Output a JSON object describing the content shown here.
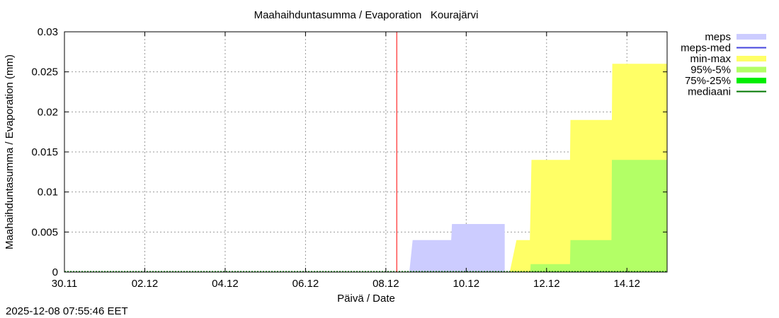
{
  "timestamp": "2025-12-08 07:55:46 EET",
  "chart_data": {
    "type": "area",
    "title": "Maahaihduntasumma / Evaporation   Kourajärvi",
    "xlabel": "Päivä / Date",
    "ylabel": "Maahaihduntasumma / Evaporation (mm)",
    "xlim": [
      "2025-11-30 00:00",
      "2025-12-15 00:00"
    ],
    "ylim": [
      0,
      0.03
    ],
    "grid": true,
    "legend_position": "outside-right",
    "xticks": [
      {
        "label": "30.11",
        "at": "2025-11-30 00:00"
      },
      {
        "label": "02.12",
        "at": "2025-12-02 00:00"
      },
      {
        "label": "04.12",
        "at": "2025-12-04 00:00"
      },
      {
        "label": "06.12",
        "at": "2025-12-06 00:00"
      },
      {
        "label": "08.12",
        "at": "2025-12-08 00:00"
      },
      {
        "label": "10.12",
        "at": "2025-12-10 00:00"
      },
      {
        "label": "12.12",
        "at": "2025-12-12 00:00"
      },
      {
        "label": "14.12",
        "at": "2025-12-14 00:00"
      }
    ],
    "yticks": [
      {
        "label": "0",
        "v": 0
      },
      {
        "label": "0.005",
        "v": 0.005
      },
      {
        "label": "0.01",
        "v": 0.01
      },
      {
        "label": "0.015",
        "v": 0.015
      },
      {
        "label": "0.02",
        "v": 0.02
      },
      {
        "label": "0.025",
        "v": 0.025
      },
      {
        "label": "0.03",
        "v": 0.03
      }
    ],
    "now_line": {
      "x": "2025-12-08 06:30",
      "color": "#ff0000"
    },
    "series": [
      {
        "name": "meps",
        "kind": "band",
        "color": "#ccccff",
        "points": [
          [
            "2025-12-08 14:00",
            0
          ],
          [
            "2025-12-08 16:00",
            0.004
          ],
          [
            "2025-12-09 15:00",
            0.004
          ],
          [
            "2025-12-09 15:30",
            0.006
          ],
          [
            "2025-12-10 23:00",
            0.006
          ],
          [
            "2025-12-10 23:00",
            0
          ]
        ]
      },
      {
        "name": "meps-med",
        "kind": "line",
        "color": "#4444dd",
        "points": []
      },
      {
        "name": "min-max",
        "kind": "band",
        "color": "#ffff66",
        "points": [
          [
            "2025-12-11 02:00",
            0
          ],
          [
            "2025-12-11 06:00",
            0.004
          ],
          [
            "2025-12-11 14:00",
            0.004
          ],
          [
            "2025-12-11 15:00",
            0.014
          ],
          [
            "2025-12-12 14:00",
            0.014
          ],
          [
            "2025-12-12 14:15",
            0.019
          ],
          [
            "2025-12-13 15:00",
            0.019
          ],
          [
            "2025-12-13 15:15",
            0.026
          ],
          [
            "2025-12-15 00:00",
            0.026
          ],
          [
            "2025-12-15 00:00",
            0
          ]
        ]
      },
      {
        "name": "95%-5%",
        "kind": "band",
        "color": "#b3ff66",
        "points": [
          [
            "2025-12-11 14:15",
            0
          ],
          [
            "2025-12-11 14:30",
            0.001
          ],
          [
            "2025-12-12 14:00",
            0.001
          ],
          [
            "2025-12-12 14:15",
            0.004
          ],
          [
            "2025-12-13 14:45",
            0.004
          ],
          [
            "2025-12-13 15:00",
            0.014
          ],
          [
            "2025-12-15 00:00",
            0.014
          ],
          [
            "2025-12-15 00:00",
            0
          ]
        ]
      },
      {
        "name": "75%-25%",
        "kind": "band",
        "color": "#00ee00",
        "points": []
      },
      {
        "name": "mediaani",
        "kind": "line",
        "color": "#007700",
        "points": []
      }
    ]
  }
}
